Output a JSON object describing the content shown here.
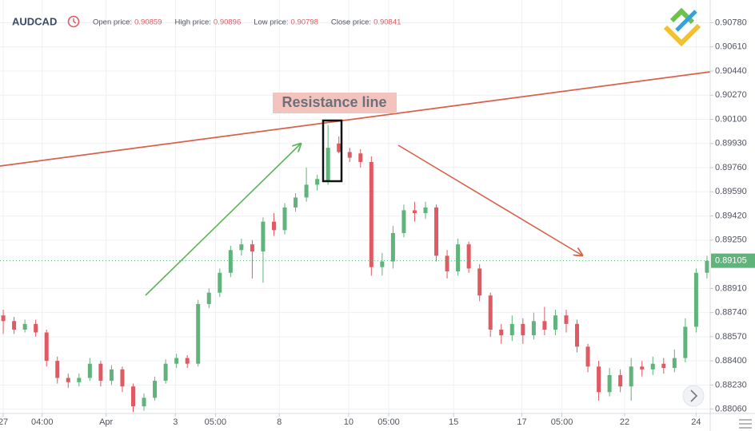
{
  "chart_data": {
    "type": "candlestick",
    "symbol": "AUDCAD",
    "header": [
      {
        "label": "Open price:",
        "value": 0.90859
      },
      {
        "label": "High price:",
        "value": 0.90896
      },
      {
        "label": "Low price:",
        "value": 0.90798
      },
      {
        "label": "Close price:",
        "value": 0.90841
      }
    ],
    "annotation": "Resistance line",
    "last_price": 0.89105,
    "up_color": "#5fb37b",
    "down_color": "#e05a63",
    "grid": true,
    "xlim": [
      -0.3,
      65.3
    ],
    "xticks": [
      {
        "value": 0,
        "label": "27"
      },
      {
        "value": 3.6,
        "label": "04:00"
      },
      {
        "value": 9.5,
        "label": "Apr"
      },
      {
        "value": 15.9,
        "label": "3"
      },
      {
        "value": 19.6,
        "label": "05:00"
      },
      {
        "value": 25.5,
        "label": "8"
      },
      {
        "value": 31.9,
        "label": "10"
      },
      {
        "value": 35.6,
        "label": "05:00"
      },
      {
        "value": 41.6,
        "label": "15"
      },
      {
        "value": 47.9,
        "label": "17"
      },
      {
        "value": 51.6,
        "label": "05:00"
      },
      {
        "value": 57.4,
        "label": "22"
      },
      {
        "value": 64,
        "label": "24"
      }
    ],
    "ylim": [
      0.8803,
      0.9094
    ],
    "yticks": [
      {
        "value": 0.9078,
        "label": "0.90780"
      },
      {
        "value": 0.9061,
        "label": "0.90610"
      },
      {
        "value": 0.9044,
        "label": "0.90440"
      },
      {
        "value": 0.9027,
        "label": "0.90270"
      },
      {
        "value": 0.901,
        "label": "0.90100"
      },
      {
        "value": 0.8993,
        "label": "0.89930"
      },
      {
        "value": 0.8976,
        "label": "0.89760"
      },
      {
        "value": 0.8959,
        "label": "0.89590"
      },
      {
        "value": 0.8942,
        "label": "0.89420"
      },
      {
        "value": 0.8925,
        "label": "0.89250"
      },
      {
        "value": 0.8891,
        "label": "0.88910"
      },
      {
        "value": 0.8874,
        "label": "0.88740"
      },
      {
        "value": 0.8857,
        "label": "0.88570"
      },
      {
        "value": 0.884,
        "label": "0.88400"
      },
      {
        "value": 0.8823,
        "label": "0.88230"
      },
      {
        "value": 0.8806,
        "label": "0.88060"
      }
    ],
    "open": [
      0.8872,
      0.8868,
      0.8862,
      0.8866,
      0.886,
      0.884,
      0.8828,
      0.8825,
      0.8828,
      0.8838,
      0.8826,
      0.8834,
      0.8822,
      0.8808,
      0.8814,
      0.8826,
      0.8838,
      0.8842,
      0.8838,
      0.888,
      0.8888,
      0.8902,
      0.8918,
      0.8922,
      0.8917,
      0.8938,
      0.8932,
      0.8948,
      0.8955,
      0.8964,
      0.8967,
      0.8993,
      0.8987,
      0.8986,
      0.898,
      0.8906,
      0.891,
      0.893,
      0.8946,
      0.8944,
      0.8948,
      0.8914,
      0.8903,
      0.8922,
      0.8905,
      0.8886,
      0.8862,
      0.8858,
      0.8866,
      0.8858,
      0.8868,
      0.8862,
      0.8872,
      0.8866,
      0.885,
      0.8836,
      0.8818,
      0.883,
      0.8822,
      0.8836,
      0.8834,
      0.8838,
      0.8835,
      0.8842,
      0.8864,
      0.8902
    ],
    "high": [
      0.8876,
      0.8871,
      0.8869,
      0.8869,
      0.8862,
      0.8843,
      0.8831,
      0.8831,
      0.8842,
      0.884,
      0.8837,
      0.8836,
      0.8824,
      0.8817,
      0.8829,
      0.8841,
      0.8845,
      0.8844,
      0.8883,
      0.8891,
      0.8905,
      0.8921,
      0.8926,
      0.8925,
      0.8941,
      0.8944,
      0.8951,
      0.8958,
      0.8976,
      0.8971,
      0.9006,
      0.8998,
      0.899,
      0.8989,
      0.8984,
      0.8916,
      0.8935,
      0.895,
      0.8952,
      0.8952,
      0.895,
      0.8918,
      0.8926,
      0.8924,
      0.8908,
      0.8888,
      0.8866,
      0.8872,
      0.887,
      0.8874,
      0.8878,
      0.8876,
      0.8876,
      0.8869,
      0.8852,
      0.884,
      0.8835,
      0.8834,
      0.8842,
      0.884,
      0.8843,
      0.8842,
      0.8848,
      0.887,
      0.8905,
      0.8914
    ],
    "low": [
      0.8859,
      0.8859,
      0.886,
      0.8857,
      0.8836,
      0.8824,
      0.8821,
      0.8822,
      0.8826,
      0.8822,
      0.8823,
      0.8818,
      0.8804,
      0.8805,
      0.8812,
      0.8824,
      0.8835,
      0.8835,
      0.8836,
      0.8877,
      0.8885,
      0.8899,
      0.8914,
      0.8898,
      0.8895,
      0.8928,
      0.8929,
      0.8945,
      0.8952,
      0.896,
      0.8964,
      0.8986,
      0.898,
      0.8976,
      0.89,
      0.89,
      0.8905,
      0.8927,
      0.8938,
      0.894,
      0.891,
      0.8898,
      0.89,
      0.8902,
      0.8882,
      0.8857,
      0.8852,
      0.8854,
      0.8852,
      0.8855,
      0.8858,
      0.8858,
      0.886,
      0.8846,
      0.8832,
      0.8812,
      0.8815,
      0.8818,
      0.8812,
      0.8829,
      0.883,
      0.8831,
      0.8832,
      0.8839,
      0.886,
      0.8898
    ],
    "close": [
      0.8868,
      0.8862,
      0.8866,
      0.886,
      0.884,
      0.8828,
      0.8825,
      0.8828,
      0.8838,
      0.8826,
      0.8834,
      0.8822,
      0.8808,
      0.8814,
      0.8826,
      0.8838,
      0.8842,
      0.8838,
      0.888,
      0.8888,
      0.8902,
      0.8918,
      0.8922,
      0.8917,
      0.8938,
      0.8932,
      0.8948,
      0.8955,
      0.8964,
      0.8968,
      0.899,
      0.8987,
      0.8983,
      0.898,
      0.8906,
      0.891,
      0.893,
      0.8946,
      0.8944,
      0.8948,
      0.8914,
      0.8903,
      0.8922,
      0.8905,
      0.8886,
      0.8862,
      0.8858,
      0.8866,
      0.8858,
      0.8868,
      0.8862,
      0.8872,
      0.8866,
      0.885,
      0.8836,
      0.8818,
      0.883,
      0.8822,
      0.8836,
      0.8834,
      0.8838,
      0.8835,
      0.8842,
      0.8864,
      0.8902,
      0.89105
    ]
  }
}
